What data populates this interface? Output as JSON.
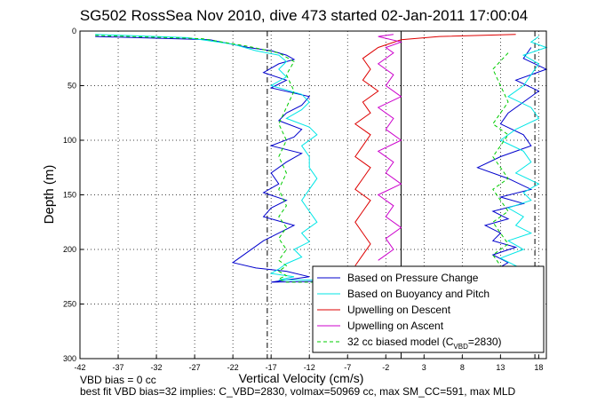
{
  "chart_data": {
    "type": "line",
    "title": "SG502 RossSea Nov 2010, dive 473 started 02-Jan-2011 17:00:04",
    "xlabel": "Vertical Velocity (cm/s)",
    "ylabel": "Depth (m)",
    "xlim": [
      -42,
      19
    ],
    "ylim": [
      300,
      0
    ],
    "y_reversed": true,
    "xticks": [
      "-42",
      "-37",
      "-32",
      "-27",
      "-22",
      "-17",
      "-12",
      "-7",
      "-2",
      "3",
      "8",
      "13",
      "18"
    ],
    "xtick_values": [
      -42,
      -37,
      -32,
      -27,
      -22,
      -17,
      -12,
      -7,
      -2,
      3,
      8,
      13,
      18
    ],
    "yticks": [
      "0",
      "50",
      "100",
      "150",
      "200",
      "250",
      "300"
    ],
    "ytick_values": [
      0,
      50,
      100,
      150,
      200,
      250,
      300
    ],
    "grid": true,
    "legend_position": "bottom-right",
    "vertical_lines": [
      {
        "x": -17.5,
        "style": "dash-dot"
      },
      {
        "x": 0,
        "style": "solid"
      },
      {
        "x": 17.5,
        "style": "dash-dot"
      }
    ],
    "series": [
      {
        "name": "Based on Pressure Change",
        "color": "#0000cc",
        "x": [
          -40,
          -25,
          -20,
          -17,
          -15,
          -14,
          -16,
          -18,
          -15,
          -17,
          -12,
          -13,
          -15,
          -16,
          -13,
          -14,
          -17,
          -13,
          -15,
          -17,
          -16,
          -18,
          -15,
          -17,
          -18,
          -14,
          -16,
          -18,
          -22,
          -19,
          -15,
          -12,
          -15,
          -17,
          0,
          12,
          14,
          12,
          15,
          12,
          13,
          11,
          14,
          12,
          16,
          13,
          17,
          14,
          10,
          13,
          17,
          16,
          13,
          14,
          16,
          18,
          15,
          19,
          16,
          17
        ],
        "y": [
          5,
          8,
          15,
          18,
          22,
          26,
          30,
          38,
          45,
          52,
          60,
          68,
          75,
          82,
          90,
          97,
          105,
          112,
          120,
          130,
          140,
          148,
          155,
          162,
          170,
          178,
          185,
          192,
          212,
          217,
          220,
          225,
          228,
          230,
          228,
          220,
          212,
          205,
          198,
          192,
          185,
          178,
          172,
          165,
          158,
          152,
          145,
          135,
          125,
          115,
          105,
          95,
          85,
          75,
          65,
          55,
          45,
          35,
          25,
          15
        ]
      },
      {
        "name": "Based on Buoyancy and Pitch",
        "color": "#00e6e6",
        "x": [
          -40,
          -28,
          -22,
          -19,
          -16,
          -15,
          -16,
          -15,
          -17,
          -13,
          -12,
          -13,
          -15,
          -12,
          -11,
          -13,
          -12,
          -12,
          -11,
          -12,
          -13,
          -12,
          -11,
          -13,
          -12,
          -14,
          -13,
          -15,
          -16,
          -17,
          -14,
          -16,
          0,
          12,
          15,
          13,
          16,
          14,
          17,
          15,
          16,
          14,
          17,
          16,
          18,
          15,
          17,
          16,
          13,
          15,
          18,
          17,
          14,
          16,
          17,
          18,
          16,
          19,
          17,
          18
        ],
        "y": [
          3,
          6,
          12,
          18,
          22,
          28,
          35,
          42,
          50,
          58,
          65,
          72,
          80,
          88,
          95,
          105,
          115,
          125,
          135,
          145,
          155,
          165,
          175,
          185,
          193,
          200,
          207,
          213,
          218,
          222,
          225,
          228,
          228,
          222,
          215,
          208,
          200,
          192,
          185,
          178,
          170,
          162,
          155,
          148,
          140,
          130,
          120,
          110,
          100,
          90,
          80,
          70,
          60,
          50,
          40,
          30,
          22,
          15,
          10,
          5
        ]
      },
      {
        "name": "Upwelling on Descent",
        "color": "#dd0000",
        "x": [
          15,
          5,
          0,
          -3,
          -5,
          -4,
          -5,
          -3,
          -5,
          -4,
          -6,
          -4,
          -5,
          -6,
          -4,
          -5,
          -6,
          -4,
          -5,
          -6,
          -5,
          -4,
          -5,
          -6
        ],
        "y": [
          3,
          5,
          8,
          15,
          25,
          35,
          45,
          55,
          65,
          75,
          85,
          95,
          105,
          115,
          125,
          135,
          145,
          155,
          165,
          175,
          185,
          195,
          205,
          215
        ]
      },
      {
        "name": "Upwelling on Ascent",
        "color": "#cc00cc",
        "x": [
          -3,
          -1,
          -2,
          0,
          -2,
          -1,
          -3,
          0,
          -2,
          -1,
          -3,
          0,
          -2,
          -1,
          -3,
          0,
          -2,
          -1,
          -3,
          -1,
          -2,
          0,
          -3,
          -1
        ],
        "y": [
          210,
          200,
          190,
          180,
          170,
          160,
          150,
          140,
          130,
          120,
          110,
          100,
          90,
          80,
          70,
          60,
          50,
          40,
          30,
          20,
          15,
          10,
          5,
          3
        ]
      },
      {
        "name": "32 cc biased model (C_VBD=2830)",
        "color": "#00cc00",
        "x": [
          -40,
          -26,
          -20,
          -16,
          -14,
          -15,
          -14,
          -15,
          -16,
          -15,
          -16,
          -15,
          -16,
          -15,
          -16,
          -15,
          -16,
          -15,
          -16,
          -15,
          -16,
          -15,
          -16,
          -15,
          0,
          12,
          13,
          12,
          14,
          13,
          12,
          14,
          13,
          12,
          14,
          13,
          12,
          13,
          14,
          12,
          13,
          14,
          13,
          12,
          14
        ],
        "y": [
          4,
          7,
          14,
          20,
          28,
          40,
          55,
          70,
          85,
          100,
          115,
          130,
          145,
          160,
          170,
          180,
          190,
          200,
          210,
          215,
          220,
          224,
          227,
          230,
          230,
          225,
          215,
          205,
          195,
          185,
          175,
          165,
          155,
          145,
          135,
          125,
          115,
          105,
          95,
          85,
          75,
          65,
          50,
          35,
          20
        ]
      }
    ],
    "legend_entries": [
      {
        "label": "Based on Pressure Change",
        "color": "#0000cc",
        "style": "solid"
      },
      {
        "label": "Based on Buoyancy and Pitch",
        "color": "#00e6e6",
        "style": "solid"
      },
      {
        "label": "Upwelling on Descent",
        "color": "#dd0000",
        "style": "solid"
      },
      {
        "label": "Upwelling on Ascent",
        "color": "#cc00cc",
        "style": "solid"
      },
      {
        "label_main": "32 cc biased model (C",
        "label_sub": "VBD",
        "label_tail": "=2830)",
        "color": "#00cc00",
        "style": "dashed"
      }
    ],
    "footer_lines": [
      "VBD bias = 0 cc",
      "best fit VBD bias=32 implies: C_VBD=2830, volmax=50969 cc, max SM_CC=591, max MLD"
    ]
  }
}
